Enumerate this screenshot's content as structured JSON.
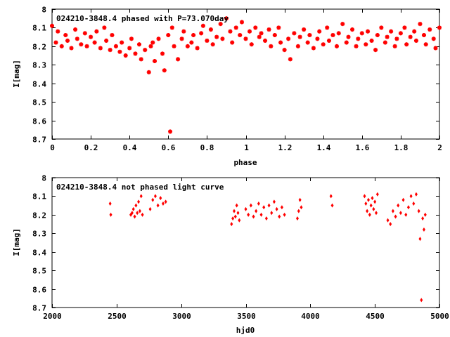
{
  "chart_data": [
    {
      "type": "scatter",
      "title": "024210-3848.4 phased with P=73.070day",
      "xlabel": "phase",
      "ylabel": "I[mag]",
      "xlim": [
        0,
        2
      ],
      "ylim": [
        8.7,
        8
      ],
      "y_inverted": true,
      "xticks": [
        "0",
        "0.2",
        "0.4",
        "0.6",
        "0.8",
        "1",
        "1.2",
        "1.4",
        "1.6",
        "1.8",
        "2"
      ],
      "yticks": [
        "8",
        "8.1",
        "8.2",
        "8.3",
        "8.4",
        "8.5",
        "8.6",
        "8.7"
      ],
      "marker_color": "#ff0000",
      "series": [
        {
          "x": [
            0.0,
            0.02,
            0.03,
            0.05,
            0.07,
            0.08,
            0.1,
            0.12,
            0.13,
            0.15,
            0.17,
            0.18,
            0.2,
            0.22,
            0.23,
            0.25,
            0.27,
            0.28,
            0.3,
            0.31,
            0.33,
            0.35,
            0.36,
            0.38,
            0.4,
            0.41,
            0.43,
            0.45,
            0.46,
            0.48,
            0.5,
            0.51,
            0.52,
            0.53,
            0.55,
            0.57,
            0.58,
            0.6,
            0.61,
            0.62,
            0.63,
            0.65,
            0.67,
            0.68,
            0.7,
            0.72,
            0.73,
            0.75,
            0.77,
            0.78,
            0.8,
            0.82,
            0.83,
            0.85,
            0.87,
            0.88,
            0.9,
            0.92,
            0.93,
            0.95,
            0.97,
            0.98,
            1.0,
            1.02,
            1.03,
            1.05,
            1.07,
            1.08,
            1.1,
            1.12,
            1.13,
            1.15,
            1.17,
            1.18,
            1.2,
            1.22,
            1.23,
            1.25,
            1.27,
            1.28,
            1.3,
            1.32,
            1.33,
            1.35,
            1.37,
            1.38,
            1.4,
            1.42,
            1.43,
            1.45,
            1.47,
            1.48,
            1.5,
            1.52,
            1.53,
            1.55,
            1.57,
            1.58,
            1.6,
            1.62,
            1.63,
            1.65,
            1.67,
            1.68,
            1.7,
            1.72,
            1.73,
            1.75,
            1.77,
            1.78,
            1.8,
            1.82,
            1.83,
            1.85,
            1.87,
            1.88,
            1.9,
            1.92,
            1.93,
            1.95,
            1.97,
            1.98,
            2.0
          ],
          "y": [
            8.09,
            8.18,
            8.12,
            8.2,
            8.14,
            8.17,
            8.21,
            8.11,
            8.16,
            8.19,
            8.13,
            8.2,
            8.15,
            8.18,
            8.12,
            8.21,
            8.1,
            8.17,
            8.22,
            8.14,
            8.2,
            8.23,
            8.18,
            8.25,
            8.21,
            8.16,
            8.24,
            8.19,
            8.27,
            8.22,
            8.34,
            8.2,
            8.18,
            8.28,
            8.16,
            8.24,
            8.33,
            8.14,
            8.66,
            8.1,
            8.2,
            8.27,
            8.16,
            8.12,
            8.2,
            8.18,
            8.14,
            8.21,
            8.13,
            8.09,
            8.17,
            8.11,
            8.19,
            8.15,
            8.08,
            8.16,
            8.05,
            8.12,
            8.18,
            8.1,
            8.14,
            8.07,
            8.16,
            8.12,
            8.19,
            8.1,
            8.15,
            8.13,
            8.17,
            8.11,
            8.2,
            8.14,
            8.1,
            8.18,
            8.22,
            8.16,
            8.27,
            8.13,
            8.2,
            8.15,
            8.11,
            8.18,
            8.14,
            8.21,
            8.16,
            8.12,
            8.19,
            8.1,
            8.17,
            8.14,
            8.2,
            8.13,
            8.08,
            8.18,
            8.15,
            8.11,
            8.2,
            8.16,
            8.13,
            8.19,
            8.12,
            8.17,
            8.22,
            8.14,
            8.1,
            8.18,
            8.15,
            8.12,
            8.2,
            8.16,
            8.13,
            8.1,
            8.19,
            8.15,
            8.12,
            8.17,
            8.08,
            8.14,
            8.19,
            8.11,
            8.16,
            8.21,
            8.1
          ]
        }
      ]
    },
    {
      "type": "scatter",
      "title": "024210-3848.4 not phased light curve",
      "xlabel": "hjd0",
      "ylabel": "I[mag]",
      "xlim": [
        2000,
        5000
      ],
      "ylim": [
        8.7,
        8
      ],
      "y_inverted": true,
      "xticks": [
        "2000",
        "2500",
        "3000",
        "3500",
        "4000",
        "4500",
        "5000"
      ],
      "yticks": [
        "8",
        "8.1",
        "8.2",
        "8.3",
        "8.4",
        "8.5",
        "8.6",
        "8.7"
      ],
      "marker_color": "#ff0000",
      "series": [
        {
          "x": [
            2450,
            2455,
            2610,
            2620,
            2630,
            2640,
            2650,
            2660,
            2670,
            2680,
            2690,
            2700,
            2760,
            2780,
            2800,
            2820,
            2840,
            2860,
            2880,
            3390,
            3400,
            3410,
            3420,
            3430,
            3440,
            3450,
            3500,
            3520,
            3540,
            3560,
            3580,
            3600,
            3620,
            3640,
            3660,
            3680,
            3700,
            3720,
            3740,
            3760,
            3780,
            3800,
            3900,
            3910,
            3920,
            3930,
            4160,
            4170,
            4420,
            4430,
            4440,
            4450,
            4460,
            4470,
            4480,
            4490,
            4500,
            4510,
            4520,
            4600,
            4620,
            4640,
            4660,
            4680,
            4700,
            4720,
            4740,
            4760,
            4780,
            4800,
            4820,
            4840,
            4850,
            4860,
            4870,
            4880,
            4890
          ],
          "y": [
            8.14,
            8.2,
            8.2,
            8.19,
            8.17,
            8.21,
            8.15,
            8.19,
            8.13,
            8.18,
            8.1,
            8.2,
            8.17,
            8.12,
            8.1,
            8.15,
            8.11,
            8.14,
            8.13,
            8.25,
            8.22,
            8.18,
            8.21,
            8.15,
            8.19,
            8.23,
            8.17,
            8.2,
            8.15,
            8.21,
            8.18,
            8.14,
            8.2,
            8.16,
            8.22,
            8.15,
            8.19,
            8.13,
            8.17,
            8.21,
            8.16,
            8.2,
            8.22,
            8.18,
            8.12,
            8.16,
            8.1,
            8.15,
            8.1,
            8.14,
            8.18,
            8.12,
            8.2,
            8.15,
            8.11,
            8.17,
            8.13,
            8.19,
            8.09,
            8.23,
            8.25,
            8.18,
            8.21,
            8.15,
            8.19,
            8.12,
            8.2,
            8.16,
            8.1,
            8.14,
            8.09,
            8.18,
            8.33,
            8.66,
            8.22,
            8.28,
            8.2
          ]
        }
      ]
    }
  ]
}
